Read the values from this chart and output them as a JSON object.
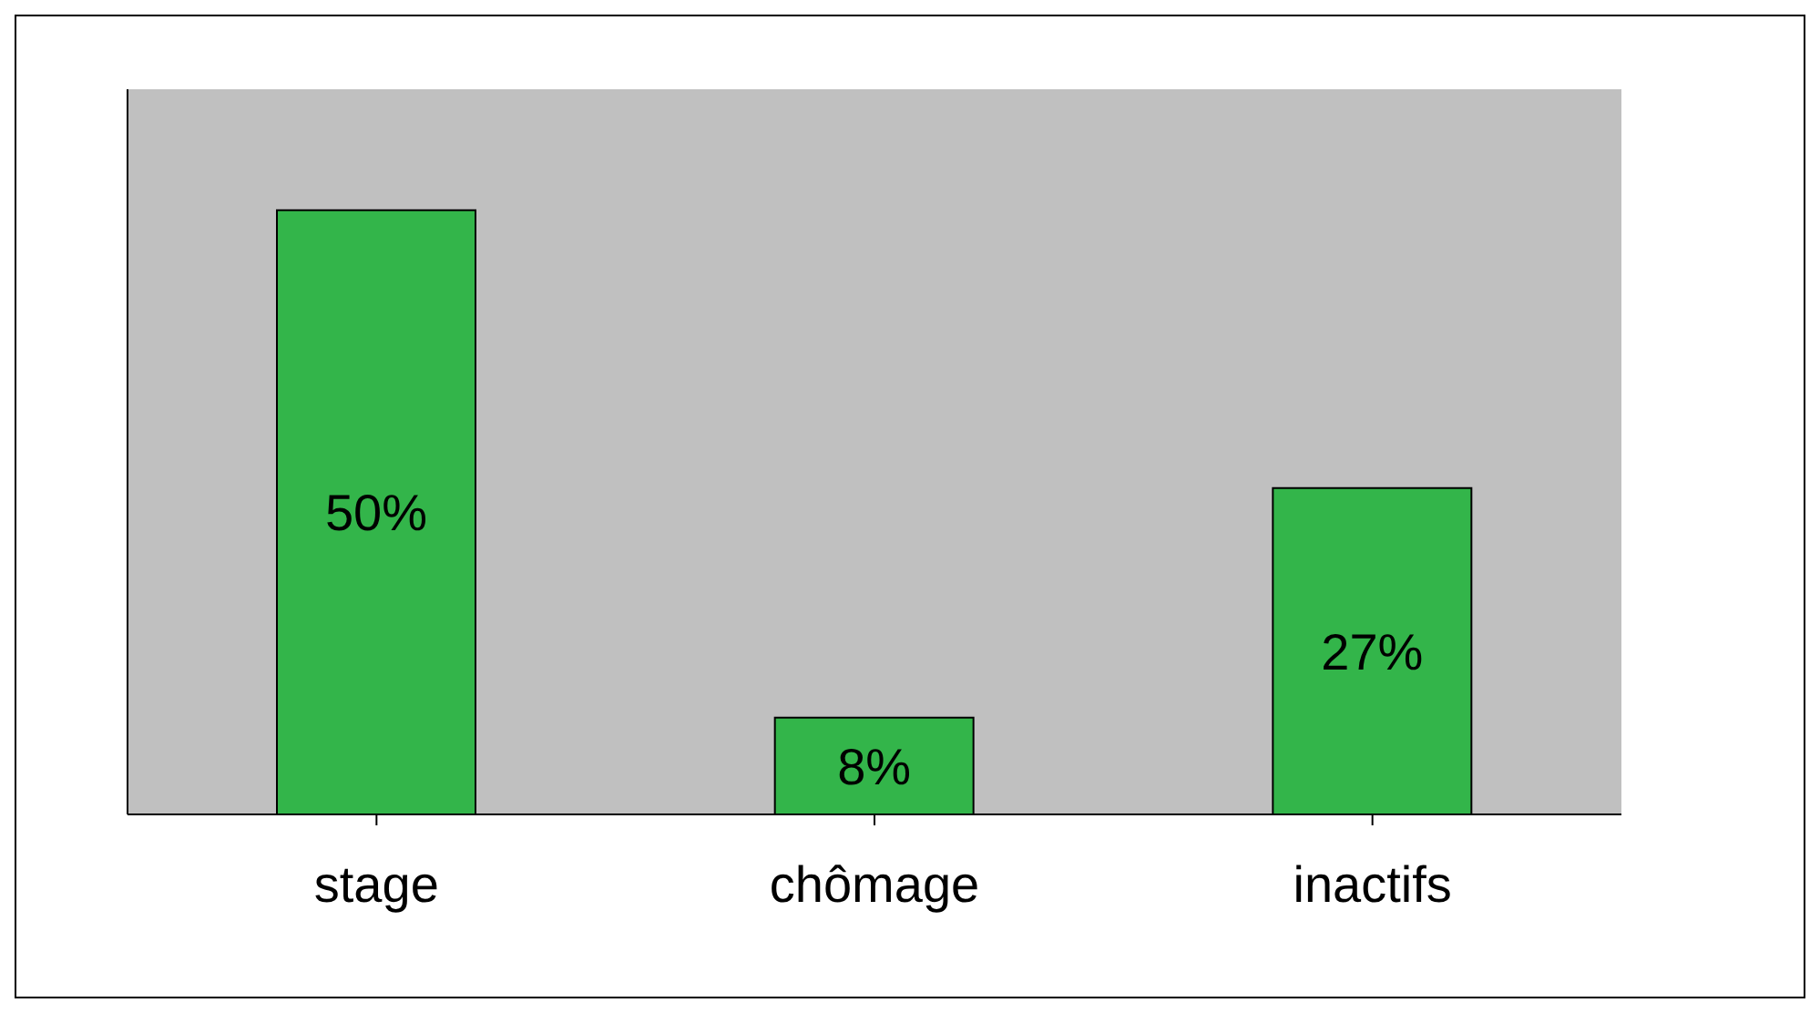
{
  "chart_data": {
    "type": "bar",
    "categories": [
      "stage",
      "chômage",
      "inactifs"
    ],
    "values": [
      50,
      8,
      27
    ],
    "value_labels": [
      "50%",
      "8%",
      "27%"
    ],
    "color": "#33b54a",
    "tick_labels": "x",
    "legend": false
  }
}
